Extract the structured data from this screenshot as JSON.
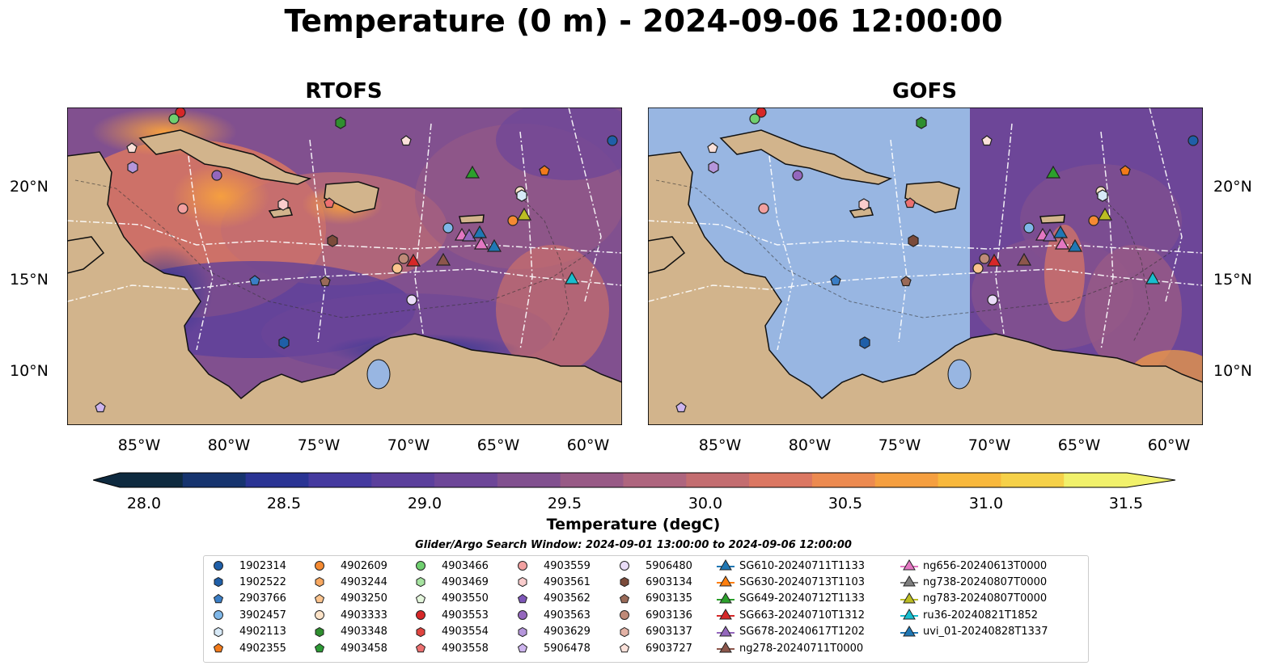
{
  "title": "Temperature (0 m) - 2024-09-06 12:00:00",
  "panels": [
    {
      "title": "RTOFS"
    },
    {
      "title": "GOFS"
    }
  ],
  "lat_labels": [
    "20°N",
    "15°N",
    "10°N"
  ],
  "lon_labels": [
    "85°W",
    "80°W",
    "75°W",
    "70°W",
    "65°W",
    "60°W"
  ],
  "colorbar": {
    "label": "Temperature (degC)",
    "ticks": [
      "28.0",
      "28.5",
      "29.0",
      "29.5",
      "30.0",
      "30.5",
      "31.0",
      "31.5"
    ],
    "colors": [
      "#0e2a3f",
      "#16346e",
      "#2a3494",
      "#453a9f",
      "#5b3f9c",
      "#6d4698",
      "#81508f",
      "#985a86",
      "#ae657e",
      "#c36d70",
      "#db7762",
      "#ec8a50",
      "#f59f40",
      "#f8b83c",
      "#f6d149",
      "#f1f16b"
    ]
  },
  "search_window": "Glider/Argo Search Window: 2024-09-01 13:00:00 to 2024-09-06 12:00:00",
  "legend": [
    {
      "label": "1902314",
      "marker": "circle",
      "color": "#1f5fa8"
    },
    {
      "label": "1902522",
      "marker": "hexagon",
      "color": "#1f5fa8"
    },
    {
      "label": "2903766",
      "marker": "pentagon",
      "color": "#3a7ec6"
    },
    {
      "label": "3902457",
      "marker": "circle",
      "color": "#7fb7e8"
    },
    {
      "label": "4902113",
      "marker": "hexagon",
      "color": "#d7e9f7"
    },
    {
      "label": "4902355",
      "marker": "pentagon",
      "color": "#f27a1a"
    },
    {
      "label": "4902609",
      "marker": "circle",
      "color": "#f58a32"
    },
    {
      "label": "4903244",
      "marker": "hexagon",
      "color": "#f8a860"
    },
    {
      "label": "4903250",
      "marker": "pentagon",
      "color": "#fbc48e"
    },
    {
      "label": "4903333",
      "marker": "circle",
      "color": "#fde3c8"
    },
    {
      "label": "4903348",
      "marker": "hexagon",
      "color": "#2f8f2f"
    },
    {
      "label": "4903458",
      "marker": "pentagon",
      "color": "#2c9a35"
    },
    {
      "label": "4903466",
      "marker": "circle",
      "color": "#6fcf6f"
    },
    {
      "label": "4903469",
      "marker": "hexagon",
      "color": "#a6e3a0"
    },
    {
      "label": "4903550",
      "marker": "pentagon",
      "color": "#e4f6dc"
    },
    {
      "label": "4903553",
      "marker": "circle",
      "color": "#d62728"
    },
    {
      "label": "4903554",
      "marker": "hexagon",
      "color": "#e0443f"
    },
    {
      "label": "4903558",
      "marker": "pentagon",
      "color": "#ec7070"
    },
    {
      "label": "4903559",
      "marker": "circle",
      "color": "#f2a0a0"
    },
    {
      "label": "4903561",
      "marker": "hexagon",
      "color": "#f9cccc"
    },
    {
      "label": "4903562",
      "marker": "pentagon",
      "color": "#7d56b8"
    },
    {
      "label": "4903563",
      "marker": "circle",
      "color": "#9467bd"
    },
    {
      "label": "4903629",
      "marker": "hexagon",
      "color": "#b596db"
    },
    {
      "label": "5906478",
      "marker": "pentagon",
      "color": "#cdb4ee"
    },
    {
      "label": "5906480",
      "marker": "circle",
      "color": "#e9dcf7"
    },
    {
      "label": "6903134",
      "marker": "hexagon",
      "color": "#7b4b3a"
    },
    {
      "label": "6903135",
      "marker": "pentagon",
      "color": "#9a6a58"
    },
    {
      "label": "6903136",
      "marker": "circle",
      "color": "#bf8a78"
    },
    {
      "label": "6903137",
      "marker": "hexagon",
      "color": "#e3b2a5"
    },
    {
      "label": "6903727",
      "marker": "pentagon",
      "color": "#fbe1da"
    },
    {
      "label": "SG610-20240711T1133",
      "marker": "triangle",
      "color": "#1f77b4"
    },
    {
      "label": "SG630-20240713T1103",
      "marker": "triangle",
      "color": "#ff7f0e"
    },
    {
      "label": "SG649-20240712T1133",
      "marker": "triangle",
      "color": "#2ca02c"
    },
    {
      "label": "SG663-20240710T1312",
      "marker": "triangle",
      "color": "#d62728"
    },
    {
      "label": "SG678-20240617T1202",
      "marker": "triangle",
      "color": "#9467bd"
    },
    {
      "label": "ng278-20240711T0000",
      "marker": "triangle",
      "color": "#8c564b"
    },
    {
      "label": "ng656-20240613T0000",
      "marker": "triangle",
      "color": "#e377c2"
    },
    {
      "label": "ng738-20240807T0000",
      "marker": "triangle",
      "color": "#7f7f7f"
    },
    {
      "label": "ng783-20240807T0000",
      "marker": "triangle",
      "color": "#bcbd22"
    },
    {
      "label": "ru36-20240821T1852",
      "marker": "triangle",
      "color": "#17becf"
    },
    {
      "label": "uvi_01-20240828T1337",
      "marker": "triangle",
      "color": "#1f77b4"
    }
  ],
  "colors": {
    "land": "#d2b48c",
    "gofs_nodata": "#98b6e2",
    "ocean_mid": "#81508f",
    "ocean_warm": "#db7762",
    "ocean_cool": "#453a9f"
  }
}
